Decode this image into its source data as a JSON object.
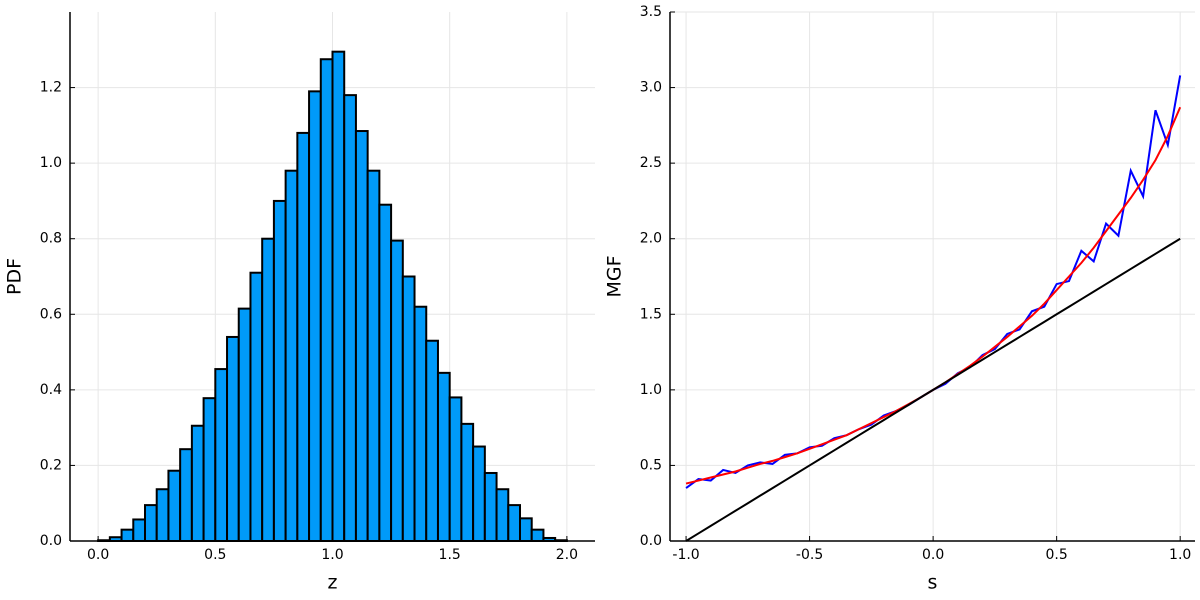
{
  "chart_data": [
    {
      "type": "histogram",
      "x_label": "z",
      "y_label": "PDF",
      "color": "#009af9",
      "grid": true,
      "bins": [
        0.0,
        0.05,
        0.1,
        0.15,
        0.2,
        0.25,
        0.3,
        0.35,
        0.4,
        0.45,
        0.5,
        0.55,
        0.6,
        0.65,
        0.7,
        0.75,
        0.8,
        0.85,
        0.9,
        0.95,
        1.0,
        1.05,
        1.1,
        1.15,
        1.2,
        1.25,
        1.3,
        1.35,
        1.4,
        1.45,
        1.5,
        1.55,
        1.6,
        1.65,
        1.7,
        1.75,
        1.8,
        1.85,
        1.9,
        1.95,
        2.0
      ],
      "values": [
        0.002,
        0.01,
        0.03,
        0.057,
        0.095,
        0.137,
        0.186,
        0.243,
        0.305,
        0.378,
        0.455,
        0.54,
        0.615,
        0.71,
        0.8,
        0.9,
        0.98,
        1.08,
        1.19,
        1.275,
        1.295,
        1.18,
        1.085,
        0.98,
        0.89,
        0.795,
        0.7,
        0.62,
        0.53,
        0.445,
        0.38,
        0.31,
        0.25,
        0.18,
        0.137,
        0.095,
        0.06,
        0.03,
        0.008,
        0.002
      ],
      "xlim": [
        -0.12,
        2.12
      ],
      "xticks": [
        {
          "value": 0.0,
          "label": "0.0"
        },
        {
          "value": 0.5,
          "label": "0.5"
        },
        {
          "value": 1.0,
          "label": "1.0"
        },
        {
          "value": 1.5,
          "label": "1.5"
        },
        {
          "value": 2.0,
          "label": "2.0"
        }
      ],
      "ylim": [
        0,
        1.4
      ],
      "yticks": [
        {
          "value": 0.0,
          "label": "0.0"
        },
        {
          "value": 0.2,
          "label": "0.2"
        },
        {
          "value": 0.4,
          "label": "0.4"
        },
        {
          "value": 0.6,
          "label": "0.6"
        },
        {
          "value": 0.8,
          "label": "0.8"
        },
        {
          "value": 1.0,
          "label": "1.0"
        },
        {
          "value": 1.2,
          "label": "1.2"
        }
      ]
    },
    {
      "type": "line",
      "x_label": "s",
      "y_label": "MGF",
      "grid": true,
      "x": [
        -1.0,
        -0.95,
        -0.9,
        -0.85,
        -0.8,
        -0.75,
        -0.7,
        -0.65,
        -0.6,
        -0.55,
        -0.5,
        -0.45,
        -0.4,
        -0.35,
        -0.3,
        -0.25,
        -0.2,
        -0.15,
        -0.1,
        -0.05,
        0.0,
        0.05,
        0.1,
        0.15,
        0.2,
        0.25,
        0.3,
        0.35,
        0.4,
        0.45,
        0.5,
        0.55,
        0.6,
        0.65,
        0.7,
        0.75,
        0.8,
        0.85,
        0.9,
        0.95,
        1.0
      ],
      "series": [
        {
          "color": "#0000ff",
          "values": [
            0.35,
            0.41,
            0.4,
            0.47,
            0.45,
            0.5,
            0.52,
            0.51,
            0.57,
            0.58,
            0.62,
            0.63,
            0.68,
            0.7,
            0.74,
            0.77,
            0.83,
            0.86,
            0.9,
            0.95,
            1.0,
            1.04,
            1.11,
            1.15,
            1.23,
            1.27,
            1.37,
            1.4,
            1.52,
            1.55,
            1.7,
            1.72,
            1.92,
            1.85,
            2.1,
            2.02,
            2.45,
            2.28,
            2.85,
            2.62,
            3.08
          ]
        },
        {
          "color": "#ff0000",
          "values": [
            0.38,
            0.4,
            0.42,
            0.44,
            0.46,
            0.485,
            0.51,
            0.53,
            0.555,
            0.58,
            0.61,
            0.64,
            0.67,
            0.7,
            0.74,
            0.78,
            0.82,
            0.86,
            0.905,
            0.95,
            1.0,
            1.05,
            1.105,
            1.16,
            1.22,
            1.285,
            1.35,
            1.42,
            1.49,
            1.57,
            1.66,
            1.75,
            1.84,
            1.94,
            2.05,
            2.16,
            2.27,
            2.39,
            2.52,
            2.68,
            2.87
          ]
        },
        {
          "color": "#000000",
          "values": [
            0.0,
            0.05,
            0.1,
            0.15,
            0.2,
            0.25,
            0.3,
            0.35,
            0.4,
            0.45,
            0.5,
            0.55,
            0.6,
            0.65,
            0.7,
            0.75,
            0.8,
            0.85,
            0.9,
            0.95,
            1.0,
            1.05,
            1.1,
            1.15,
            1.2,
            1.25,
            1.3,
            1.35,
            1.4,
            1.45,
            1.5,
            1.55,
            1.6,
            1.65,
            1.7,
            1.75,
            1.8,
            1.85,
            1.9,
            1.95,
            2.0
          ]
        }
      ],
      "xlim": [
        -1.065,
        1.06
      ],
      "xticks": [
        {
          "value": -1.0,
          "label": "-1.0"
        },
        {
          "value": -0.5,
          "label": "-0.5"
        },
        {
          "value": 0.0,
          "label": "0.0"
        },
        {
          "value": 0.5,
          "label": "0.5"
        },
        {
          "value": 1.0,
          "label": "1.0"
        }
      ],
      "ylim": [
        0,
        3.5
      ],
      "yticks": [
        {
          "value": 0.0,
          "label": "0.0"
        },
        {
          "value": 0.5,
          "label": "0.5"
        },
        {
          "value": 1.0,
          "label": "1.0"
        },
        {
          "value": 1.5,
          "label": "1.5"
        },
        {
          "value": 2.0,
          "label": "2.0"
        },
        {
          "value": 2.5,
          "label": "2.5"
        },
        {
          "value": 3.0,
          "label": "3.0"
        },
        {
          "value": 3.5,
          "label": "3.5"
        }
      ]
    }
  ]
}
